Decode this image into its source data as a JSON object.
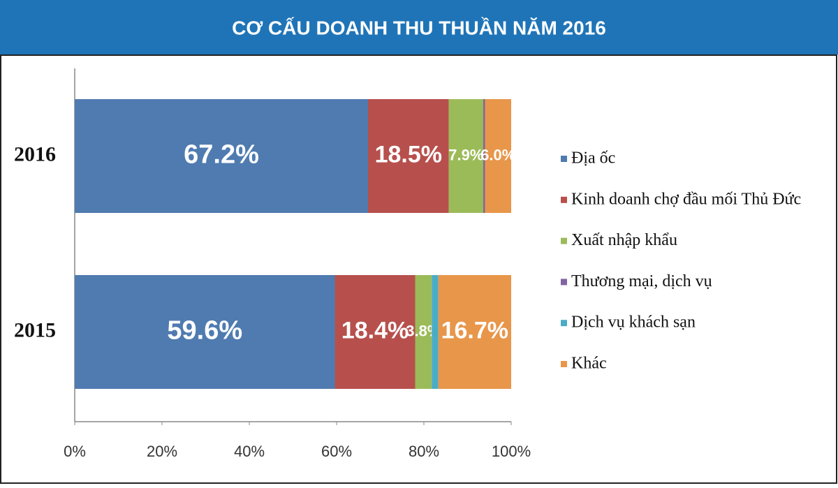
{
  "chart_data": {
    "type": "stacked-bar-horizontal",
    "title": "CƠ CẤU DOANH THU THUẦN NĂM 2016",
    "categories": [
      "2016",
      "2015"
    ],
    "series": [
      {
        "name": "Địa ốc",
        "color": "#4f7bb0",
        "values": [
          67.2,
          59.6
        ],
        "value_labels": [
          "67.2%",
          "59.6%"
        ]
      },
      {
        "name": "Kinh doanh chợ đầu mối Thủ Đức",
        "color": "#b7504d",
        "values": [
          18.5,
          18.4
        ],
        "value_labels": [
          "18.5%",
          "18.4%"
        ]
      },
      {
        "name": "Xuất nhập khẩu",
        "color": "#9bbb59",
        "values": [
          7.9,
          3.8
        ],
        "value_labels": [
          "7.9%",
          "3.8%"
        ]
      },
      {
        "name": "Thương mại, dịch vụ",
        "color": "#8064a2",
        "values": [
          0.4,
          0
        ]
      },
      {
        "name": "Dịch vụ khách sạn",
        "color": "#4bacc6",
        "values": [
          0,
          1.5
        ]
      },
      {
        "name": "Khác",
        "color": "#e8964a",
        "values": [
          6.0,
          16.7
        ],
        "value_labels": [
          "6.0%",
          "16.7%"
        ]
      }
    ],
    "xlim": [
      0,
      100
    ],
    "xticks": [
      {
        "value": 0,
        "label": "0%"
      },
      {
        "value": 20,
        "label": "20%"
      },
      {
        "value": 40,
        "label": "40%"
      },
      {
        "value": 60,
        "label": "60%"
      },
      {
        "value": 80,
        "label": "80%"
      },
      {
        "value": 100,
        "label": "100%"
      }
    ],
    "legend": "right"
  }
}
